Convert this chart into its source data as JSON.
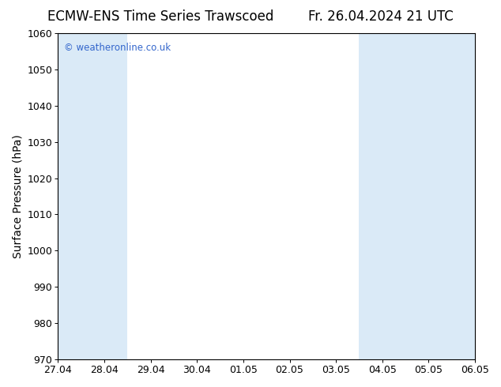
{
  "title_left": "ECMW-ENS Time Series Trawscoed",
  "title_right": "Fr. 26.04.2024 21 UTC",
  "ylabel": "Surface Pressure (hPa)",
  "ylim": [
    970,
    1060
  ],
  "yticks": [
    970,
    980,
    990,
    1000,
    1010,
    1020,
    1030,
    1040,
    1050,
    1060
  ],
  "xtick_labels": [
    "27.04",
    "28.04",
    "29.04",
    "30.04",
    "01.05",
    "02.05",
    "03.05",
    "04.05",
    "05.05",
    "06.05"
  ],
  "background_color": "#ffffff",
  "plot_bg_color": "#ffffff",
  "shaded_color": "#daeaf7",
  "watermark_text": "© weatheronline.co.uk",
  "watermark_color": "#3366cc",
  "title_fontsize": 12,
  "tick_fontsize": 9,
  "ylabel_fontsize": 10
}
